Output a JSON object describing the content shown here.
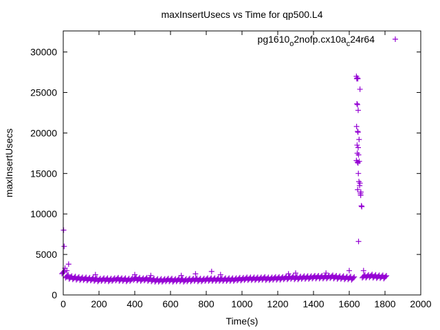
{
  "chart_data": {
    "type": "scatter",
    "title": "maxInsertUsecs vs Time for qp500.L4",
    "xlabel": "Time(s)",
    "ylabel": "maxInsertUsecs",
    "xlim": [
      0,
      2000
    ],
    "ylim": [
      0,
      32600
    ],
    "xticks": [
      0,
      200,
      400,
      600,
      800,
      1000,
      1200,
      1400,
      1600,
      1800,
      2000
    ],
    "yticks": [
      0,
      5000,
      10000,
      15000,
      20000,
      25000,
      30000
    ],
    "grid": false,
    "legend_placement": "top-right",
    "legend": {
      "base": "pg1610",
      "sub1": "o",
      "mid": "2nofp.cx10a",
      "sub2": "c",
      "tail": "24r64"
    },
    "marker": "plus",
    "color": "#9400d3",
    "series": [
      {
        "name": "pg1610_o2nofp.cx10a_c24r64",
        "baseline_x": [
          0,
          20,
          40,
          60,
          80,
          100,
          120,
          140,
          160,
          180,
          200,
          220,
          240,
          260,
          280,
          300,
          320,
          340,
          360,
          380,
          400,
          420,
          440,
          460,
          480,
          500,
          520,
          540,
          560,
          580,
          600,
          620,
          640,
          660,
          680,
          700,
          720,
          740,
          760,
          780,
          800,
          820,
          840,
          860,
          880,
          900,
          920,
          940,
          960,
          980,
          1000,
          1020,
          1040,
          1060,
          1080,
          1100,
          1120,
          1140,
          1160,
          1180,
          1200,
          1220,
          1240,
          1260,
          1280,
          1300,
          1320,
          1340,
          1360,
          1380,
          1400,
          1420,
          1440,
          1460,
          1480,
          1500,
          1520,
          1540,
          1560,
          1580,
          1600,
          1620,
          1680,
          1700,
          1720,
          1740,
          1760,
          1780,
          1800
        ],
        "baseline_y": [
          2800,
          2300,
          2150,
          2100,
          2050,
          2000,
          2000,
          1950,
          1950,
          1900,
          1850,
          1900,
          1900,
          1850,
          1900,
          1950,
          1900,
          1900,
          1850,
          1900,
          2000,
          1950,
          1900,
          1950,
          1900,
          1850,
          1800,
          1800,
          1800,
          1850,
          1850,
          1800,
          1850,
          1850,
          1800,
          1850,
          1850,
          1900,
          1850,
          1850,
          1900,
          1900,
          1900,
          1900,
          1900,
          1900,
          1900,
          1900,
          1900,
          1950,
          1950,
          2000,
          2000,
          2000,
          2000,
          2000,
          2050,
          2000,
          2000,
          2050,
          2050,
          2050,
          2100,
          2100,
          2150,
          2100,
          2100,
          2150,
          2150,
          2150,
          2200,
          2200,
          2200,
          2200,
          2200,
          2250,
          2200,
          2150,
          2150,
          2100,
          2100,
          2050,
          2300,
          2300,
          2350,
          2300,
          2250,
          2250,
          2200
        ],
        "other_x": [
          2,
          5,
          10,
          20,
          30,
          180,
          400,
          490,
          660,
          740,
          830,
          880,
          1260,
          1300,
          1470,
          1600,
          1680,
          1640,
          1642,
          1645,
          1648,
          1660,
          1643,
          1646,
          1650,
          1641,
          1647,
          1649,
          1655,
          1644,
          1650,
          1645,
          1652,
          1640,
          1646,
          1649,
          1656,
          1651,
          1654,
          1660,
          1658,
          1647,
          1665,
          1663,
          1664,
          1668,
          1670,
          1652
        ],
        "other_y": [
          8000,
          6000,
          3300,
          3000,
          3800,
          2500,
          2500,
          2400,
          2400,
          2600,
          2900,
          2500,
          2600,
          2700,
          2700,
          3000,
          3000,
          27000,
          26700,
          26800,
          26700,
          25400,
          23600,
          23500,
          22800,
          20800,
          20200,
          20100,
          19200,
          18500,
          18200,
          17500,
          17300,
          16600,
          16400,
          16300,
          16500,
          15000,
          14000,
          13800,
          13500,
          13000,
          12700,
          12500,
          12300,
          11000,
          10900,
          6600
        ]
      }
    ]
  }
}
